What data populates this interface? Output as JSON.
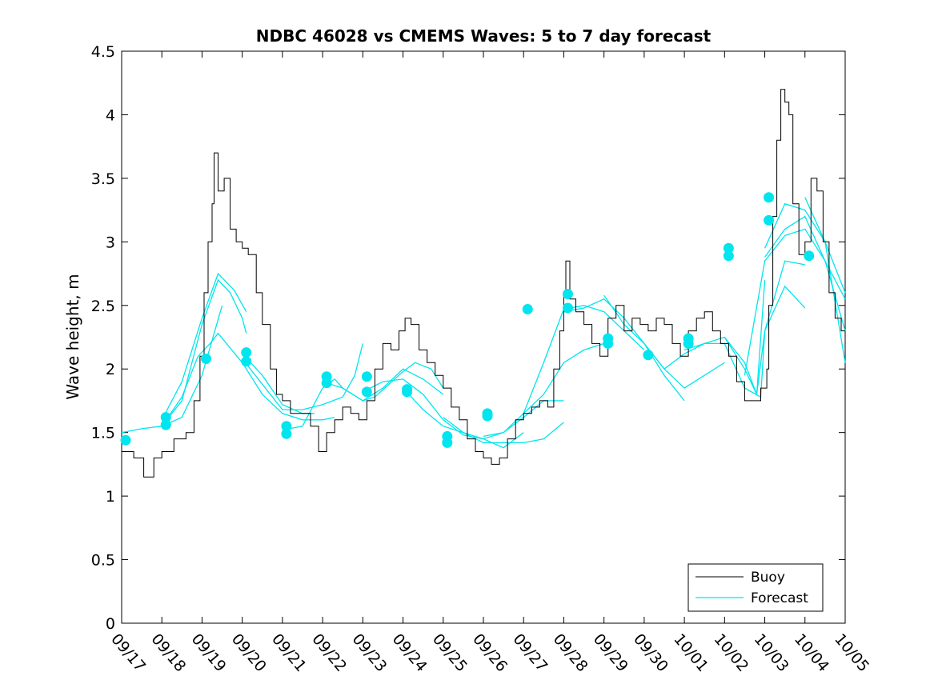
{
  "chart_data": {
    "type": "line",
    "title": "NDBC 46028 vs CMEMS Waves: 5 to 7 day forecast",
    "xlabel": "",
    "ylabel": "Wave height, m",
    "xlim": [
      0,
      18
    ],
    "ylim": [
      0,
      4.5
    ],
    "x_tick_labels": [
      "09/17",
      "09/18",
      "09/19",
      "09/20",
      "09/21",
      "09/22",
      "09/23",
      "09/24",
      "09/25",
      "09/26",
      "09/27",
      "09/28",
      "09/29",
      "09/30",
      "10/01",
      "10/02",
      "10/03",
      "10/04",
      "10/05"
    ],
    "y_tick_labels": [
      "0",
      "0.5",
      "1",
      "1.5",
      "2",
      "2.5",
      "3",
      "3.5",
      "4",
      "4.5"
    ],
    "legend": {
      "position": "bottom-right",
      "entries": [
        "Buoy",
        "Forecast"
      ]
    },
    "colors": {
      "buoy": "#000000",
      "forecast": "#00e5ee"
    },
    "buoy": {
      "name": "Buoy",
      "points": [
        [
          0,
          1.35
        ],
        [
          0.3,
          1.3
        ],
        [
          0.55,
          1.15
        ],
        [
          0.8,
          1.3
        ],
        [
          1.0,
          1.35
        ],
        [
          1.3,
          1.45
        ],
        [
          1.6,
          1.5
        ],
        [
          1.8,
          1.75
        ],
        [
          1.95,
          2.1
        ],
        [
          2.05,
          2.6
        ],
        [
          2.15,
          3.0
        ],
        [
          2.25,
          3.3
        ],
        [
          2.3,
          3.7
        ],
        [
          2.4,
          3.4
        ],
        [
          2.55,
          3.5
        ],
        [
          2.7,
          3.1
        ],
        [
          2.85,
          3.0
        ],
        [
          3.0,
          2.95
        ],
        [
          3.15,
          2.9
        ],
        [
          3.35,
          2.6
        ],
        [
          3.5,
          2.35
        ],
        [
          3.7,
          2.0
        ],
        [
          3.85,
          1.8
        ],
        [
          4.0,
          1.75
        ],
        [
          4.2,
          1.65
        ],
        [
          4.5,
          1.65
        ],
        [
          4.7,
          1.55
        ],
        [
          4.9,
          1.35
        ],
        [
          5.1,
          1.5
        ],
        [
          5.3,
          1.6
        ],
        [
          5.5,
          1.7
        ],
        [
          5.7,
          1.65
        ],
        [
          5.9,
          1.6
        ],
        [
          6.1,
          1.75
        ],
        [
          6.3,
          2.0
        ],
        [
          6.5,
          2.2
        ],
        [
          6.7,
          2.15
        ],
        [
          6.9,
          2.3
        ],
        [
          7.05,
          2.4
        ],
        [
          7.2,
          2.35
        ],
        [
          7.4,
          2.15
        ],
        [
          7.6,
          2.05
        ],
        [
          7.8,
          1.95
        ],
        [
          8.0,
          1.85
        ],
        [
          8.2,
          1.7
        ],
        [
          8.4,
          1.6
        ],
        [
          8.6,
          1.45
        ],
        [
          8.8,
          1.35
        ],
        [
          9.0,
          1.3
        ],
        [
          9.2,
          1.25
        ],
        [
          9.4,
          1.3
        ],
        [
          9.6,
          1.45
        ],
        [
          9.8,
          1.6
        ],
        [
          10.0,
          1.65
        ],
        [
          10.2,
          1.7
        ],
        [
          10.4,
          1.75
        ],
        [
          10.6,
          1.7
        ],
        [
          10.75,
          2.0
        ],
        [
          10.9,
          2.3
        ],
        [
          11.0,
          2.6
        ],
        [
          11.05,
          2.85
        ],
        [
          11.15,
          2.55
        ],
        [
          11.3,
          2.45
        ],
        [
          11.5,
          2.35
        ],
        [
          11.7,
          2.2
        ],
        [
          11.9,
          2.1
        ],
        [
          12.1,
          2.4
        ],
        [
          12.3,
          2.5
        ],
        [
          12.5,
          2.3
        ],
        [
          12.7,
          2.4
        ],
        [
          12.9,
          2.35
        ],
        [
          13.1,
          2.3
        ],
        [
          13.3,
          2.4
        ],
        [
          13.5,
          2.35
        ],
        [
          13.7,
          2.2
        ],
        [
          13.9,
          2.1
        ],
        [
          14.1,
          2.3
        ],
        [
          14.3,
          2.4
        ],
        [
          14.5,
          2.45
        ],
        [
          14.7,
          2.3
        ],
        [
          14.9,
          2.2
        ],
        [
          15.1,
          2.1
        ],
        [
          15.3,
          1.9
        ],
        [
          15.5,
          1.75
        ],
        [
          15.7,
          1.75
        ],
        [
          15.9,
          1.85
        ],
        [
          16.05,
          2.0
        ],
        [
          16.1,
          2.5
        ],
        [
          16.2,
          3.2
        ],
        [
          16.3,
          3.8
        ],
        [
          16.4,
          4.2
        ],
        [
          16.5,
          4.1
        ],
        [
          16.6,
          4.0
        ],
        [
          16.7,
          3.3
        ],
        [
          16.85,
          2.9
        ],
        [
          17.0,
          3.0
        ],
        [
          17.15,
          3.5
        ],
        [
          17.3,
          3.4
        ],
        [
          17.45,
          3.0
        ],
        [
          17.6,
          2.6
        ],
        [
          17.75,
          2.4
        ],
        [
          17.9,
          2.3
        ],
        [
          18.0,
          2.3
        ]
      ]
    },
    "forecast_lines": [
      {
        "name": "Forecast",
        "points": [
          [
            0,
            1.5
          ],
          [
            0.5,
            1.53
          ],
          [
            1.0,
            1.55
          ],
          [
            1.5,
            1.62
          ],
          [
            2.0,
            1.95
          ],
          [
            2.5,
            2.5
          ]
        ]
      },
      {
        "name": "Forecast",
        "points": [
          [
            1.0,
            1.55
          ],
          [
            1.5,
            1.75
          ],
          [
            2.0,
            2.35
          ],
          [
            2.4,
            2.7
          ],
          [
            2.7,
            2.6
          ],
          [
            3.0,
            2.4
          ],
          [
            3.1,
            2.28
          ]
        ]
      },
      {
        "name": "Forecast",
        "points": [
          [
            1.0,
            1.6
          ],
          [
            1.5,
            1.9
          ],
          [
            2.0,
            2.4
          ],
          [
            2.4,
            2.75
          ],
          [
            2.8,
            2.62
          ],
          [
            3.1,
            2.45
          ]
        ]
      },
      {
        "name": "Forecast",
        "points": [
          [
            1.0,
            1.55
          ],
          [
            1.5,
            1.78
          ],
          [
            1.9,
            2.1
          ],
          [
            2.2,
            2.2
          ],
          [
            2.4,
            2.28
          ],
          [
            3.0,
            2.05
          ],
          [
            3.5,
            1.8
          ],
          [
            4.0,
            1.65
          ],
          [
            4.5,
            1.6
          ],
          [
            5.0,
            1.6
          ],
          [
            5.3,
            1.62
          ]
        ]
      },
      {
        "name": "Forecast",
        "points": [
          [
            3.0,
            2.12
          ],
          [
            3.5,
            1.95
          ],
          [
            4.0,
            1.72
          ],
          [
            4.5,
            1.65
          ],
          [
            4.8,
            1.65
          ]
        ]
      },
      {
        "name": "Forecast",
        "points": [
          [
            3.0,
            2.08
          ],
          [
            3.5,
            1.88
          ],
          [
            4.0,
            1.68
          ],
          [
            4.5,
            1.68
          ],
          [
            5.0,
            1.72
          ],
          [
            5.5,
            1.78
          ],
          [
            5.8,
            1.95
          ],
          [
            6.0,
            2.2
          ]
        ]
      },
      {
        "name": "Forecast",
        "points": [
          [
            4.0,
            1.52
          ],
          [
            4.5,
            1.55
          ],
          [
            5.0,
            1.85
          ],
          [
            5.3,
            1.92
          ],
          [
            5.5,
            1.85
          ],
          [
            6.0,
            1.75
          ],
          [
            6.5,
            1.85
          ],
          [
            7.0,
            2.0
          ],
          [
            7.5,
            1.92
          ],
          [
            8.0,
            1.8
          ]
        ]
      },
      {
        "name": "Forecast",
        "points": [
          [
            5.0,
            1.9
          ],
          [
            5.5,
            1.85
          ],
          [
            6.0,
            1.75
          ],
          [
            6.3,
            1.78
          ],
          [
            7.0,
            1.98
          ],
          [
            7.3,
            2.05
          ],
          [
            7.7,
            2.0
          ],
          [
            8.0,
            1.85
          ]
        ]
      },
      {
        "name": "Forecast",
        "points": [
          [
            6.0,
            1.82
          ],
          [
            6.5,
            1.9
          ],
          [
            7.0,
            1.92
          ],
          [
            7.5,
            1.8
          ],
          [
            8.0,
            1.6
          ],
          [
            8.5,
            1.48
          ],
          [
            9.0,
            1.45
          ],
          [
            9.5,
            1.38
          ],
          [
            10.0,
            1.5
          ]
        ]
      },
      {
        "name": "Forecast",
        "points": [
          [
            7.0,
            1.85
          ],
          [
            7.5,
            1.68
          ],
          [
            8.0,
            1.55
          ],
          [
            8.5,
            1.5
          ],
          [
            9.0,
            1.45
          ],
          [
            9.5,
            1.5
          ],
          [
            10.0,
            1.62
          ],
          [
            10.5,
            1.75
          ],
          [
            11.0,
            1.75
          ]
        ]
      },
      {
        "name": "Forecast",
        "points": [
          [
            8.0,
            1.62
          ],
          [
            8.5,
            1.5
          ],
          [
            9.0,
            1.42
          ],
          [
            9.5,
            1.42
          ],
          [
            10.0,
            1.42
          ],
          [
            10.5,
            1.45
          ],
          [
            11.0,
            1.58
          ]
        ]
      },
      {
        "name": "Forecast",
        "points": [
          [
            9.0,
            1.47
          ],
          [
            9.5,
            1.5
          ],
          [
            10.0,
            1.65
          ],
          [
            10.5,
            1.8
          ],
          [
            11.0,
            2.05
          ],
          [
            11.5,
            2.15
          ],
          [
            12.0,
            2.2
          ]
        ]
      },
      {
        "name": "Forecast",
        "points": [
          [
            10.0,
            1.65
          ],
          [
            10.5,
            2.05
          ],
          [
            11.0,
            2.47
          ],
          [
            11.5,
            2.5
          ],
          [
            12.0,
            2.45
          ],
          [
            12.5,
            2.3
          ],
          [
            13.0,
            2.15
          ]
        ]
      },
      {
        "name": "Forecast",
        "points": [
          [
            11.0,
            2.45
          ],
          [
            11.5,
            2.48
          ],
          [
            12.0,
            2.55
          ],
          [
            12.5,
            2.4
          ],
          [
            13.0,
            2.2
          ],
          [
            13.5,
            1.95
          ],
          [
            14.0,
            1.75
          ]
        ]
      },
      {
        "name": "Forecast",
        "points": [
          [
            12.0,
            2.58
          ],
          [
            12.5,
            2.35
          ],
          [
            13.0,
            2.2
          ],
          [
            13.5,
            2.0
          ],
          [
            14.0,
            1.85
          ],
          [
            14.5,
            1.95
          ],
          [
            15.0,
            2.05
          ]
        ]
      },
      {
        "name": "Forecast",
        "points": [
          [
            13.0,
            2.2
          ],
          [
            13.5,
            2.0
          ],
          [
            14.0,
            2.12
          ],
          [
            14.5,
            2.2
          ],
          [
            15.0,
            2.25
          ],
          [
            15.5,
            2.0
          ],
          [
            15.8,
            1.8
          ],
          [
            16.0,
            2.7
          ]
        ]
      },
      {
        "name": "Forecast",
        "points": [
          [
            14.0,
            2.15
          ],
          [
            14.5,
            2.2
          ],
          [
            15.0,
            2.2
          ],
          [
            15.5,
            1.85
          ],
          [
            15.9,
            1.78
          ],
          [
            16.0,
            2.3
          ],
          [
            16.5,
            2.65
          ],
          [
            17.0,
            2.48
          ]
        ]
      },
      {
        "name": "Forecast",
        "points": [
          [
            15.0,
            2.25
          ],
          [
            15.5,
            2.05
          ],
          [
            15.8,
            1.8
          ],
          [
            16.0,
            2.3
          ],
          [
            16.5,
            2.85
          ],
          [
            17.0,
            2.82
          ]
        ]
      },
      {
        "name": "Forecast",
        "points": [
          [
            15.5,
            1.95
          ],
          [
            16.0,
            2.85
          ],
          [
            16.5,
            3.05
          ],
          [
            17.0,
            3.1
          ],
          [
            17.5,
            2.85
          ],
          [
            18.0,
            2.55
          ]
        ]
      },
      {
        "name": "Forecast",
        "points": [
          [
            16.0,
            2.95
          ],
          [
            16.5,
            3.3
          ],
          [
            17.0,
            3.25
          ],
          [
            17.5,
            3.0
          ],
          [
            18.0,
            2.6
          ]
        ]
      },
      {
        "name": "Forecast",
        "points": [
          [
            16.0,
            2.88
          ],
          [
            16.5,
            3.1
          ],
          [
            17.0,
            3.2
          ],
          [
            17.5,
            2.85
          ],
          [
            18.0,
            2.3
          ]
        ]
      },
      {
        "name": "Forecast",
        "points": [
          [
            17.0,
            3.35
          ],
          [
            17.5,
            3.0
          ],
          [
            18.0,
            2.05
          ]
        ]
      }
    ],
    "forecast_markers": {
      "name": "Forecast",
      "points": [
        [
          0.1,
          1.44
        ],
        [
          1.1,
          1.56
        ],
        [
          1.1,
          1.62
        ],
        [
          2.1,
          2.08
        ],
        [
          3.1,
          2.06
        ],
        [
          3.1,
          2.13
        ],
        [
          4.1,
          1.55
        ],
        [
          4.1,
          1.49
        ],
        [
          5.1,
          1.89
        ],
        [
          5.1,
          1.94
        ],
        [
          6.1,
          1.94
        ],
        [
          6.1,
          1.82
        ],
        [
          7.1,
          1.84
        ],
        [
          7.1,
          1.82
        ],
        [
          8.1,
          1.47
        ],
        [
          8.1,
          1.42
        ],
        [
          9.1,
          1.65
        ],
        [
          9.1,
          1.63
        ],
        [
          10.1,
          2.47
        ],
        [
          11.1,
          2.59
        ],
        [
          11.1,
          2.48
        ],
        [
          12.1,
          2.24
        ],
        [
          12.1,
          2.2
        ],
        [
          13.1,
          2.11
        ],
        [
          14.1,
          2.24
        ],
        [
          14.1,
          2.2
        ],
        [
          15.1,
          2.95
        ],
        [
          15.1,
          2.89
        ],
        [
          16.1,
          3.35
        ],
        [
          16.1,
          3.17
        ],
        [
          17.1,
          2.89
        ]
      ]
    }
  }
}
